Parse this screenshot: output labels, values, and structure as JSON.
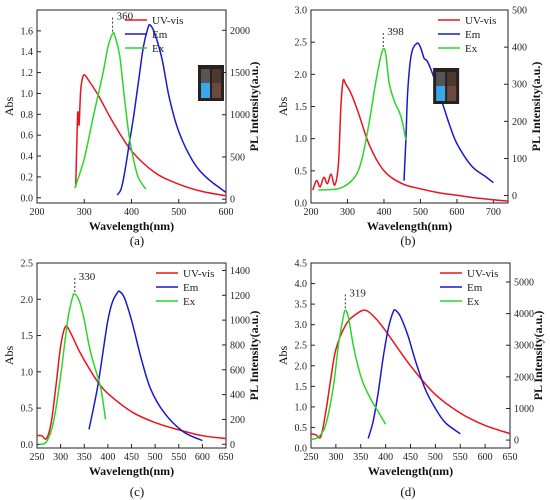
{
  "colors": {
    "uvvis": "#e8141b",
    "em": "#1a1acc",
    "ex": "#2bd62b"
  },
  "chart_data": [
    {
      "type": "line",
      "caption": "(a)",
      "xlabel": "Wavelength(nm)",
      "ylabel": "Abs",
      "ylabel_right": "PL Intensity(a.u.)",
      "xlim": [
        200,
        600
      ],
      "ylim": [
        -0.05,
        1.8
      ],
      "ylim_right": [
        -45,
        2240
      ],
      "xticks": [
        200,
        300,
        400,
        500,
        600
      ],
      "yticks": [
        0.0,
        0.2,
        0.4,
        0.6,
        0.8,
        1.0,
        1.2,
        1.4,
        1.6
      ],
      "yticks_right": [
        0,
        500,
        1000,
        1500,
        2000
      ],
      "annotation": {
        "text": "360",
        "x": 360
      },
      "legend_position": "top-center",
      "has_inset_photo": true,
      "series": [
        {
          "name": "UV-vis",
          "color_key": "uvvis",
          "axis": "left",
          "x": [
            282,
            286,
            289,
            292,
            295,
            300,
            310,
            330,
            360,
            400,
            450,
            500,
            550,
            600
          ],
          "y": [
            0.1,
            0.8,
            0.7,
            1.0,
            1.12,
            1.18,
            1.12,
            0.98,
            0.73,
            0.45,
            0.24,
            0.13,
            0.06,
            0.02
          ]
        },
        {
          "name": "Em",
          "color_key": "em",
          "axis": "right",
          "x": [
            370,
            378,
            385,
            395,
            405,
            415,
            425,
            435,
            440,
            450,
            465,
            480,
            500,
            530,
            560,
            600
          ],
          "y": [
            50,
            120,
            300,
            650,
            1000,
            1400,
            1800,
            2030,
            2060,
            1950,
            1650,
            1200,
            800,
            450,
            250,
            80
          ]
        },
        {
          "name": "Ex",
          "color_key": "ex",
          "axis": "right",
          "x": [
            280,
            300,
            320,
            340,
            350,
            360,
            365,
            375,
            385,
            395,
            405,
            415,
            430
          ],
          "y": [
            130,
            480,
            1000,
            1500,
            1800,
            1960,
            1930,
            1700,
            1200,
            750,
            450,
            250,
            120
          ]
        }
      ]
    },
    {
      "type": "line",
      "caption": "(b)",
      "xlabel": "Wavelength(nm)",
      "ylabel": "Abs",
      "ylabel_right": "PL Intensity(a.u.)",
      "xlim": [
        200,
        740
      ],
      "ylim": [
        0.0,
        3.0
      ],
      "ylim_right": [
        -20,
        500
      ],
      "xticks": [
        200,
        300,
        400,
        500,
        600,
        700
      ],
      "yticks": [
        0.0,
        0.5,
        1.0,
        1.5,
        2.0,
        2.5,
        3.0
      ],
      "yticks_right": [
        0,
        100,
        200,
        300,
        400,
        500
      ],
      "annotation": {
        "text": "398",
        "x": 398
      },
      "legend_position": "top-right",
      "has_inset_photo": true,
      "series": [
        {
          "name": "UV-vis",
          "color_key": "uvvis",
          "axis": "left",
          "x": [
            205,
            215,
            225,
            235,
            245,
            255,
            265,
            275,
            282,
            288,
            295,
            310,
            330,
            360,
            400,
            450,
            500,
            550,
            600,
            650,
            700,
            740
          ],
          "y": [
            0.2,
            0.35,
            0.25,
            0.4,
            0.3,
            0.45,
            0.28,
            0.6,
            1.5,
            1.9,
            1.85,
            1.7,
            1.4,
            0.9,
            0.5,
            0.3,
            0.22,
            0.16,
            0.12,
            0.08,
            0.05,
            0.03
          ]
        },
        {
          "name": "Em",
          "color_key": "em",
          "axis": "right",
          "x": [
            455,
            460,
            465,
            475,
            490,
            500,
            510,
            520,
            540,
            560,
            580,
            600,
            640,
            680,
            700
          ],
          "y": [
            40,
            150,
            280,
            380,
            410,
            400,
            370,
            360,
            310,
            250,
            190,
            140,
            80,
            50,
            35
          ]
        },
        {
          "name": "Ex",
          "color_key": "ex",
          "axis": "right",
          "x": [
            220,
            280,
            320,
            340,
            360,
            375,
            388,
            398,
            405,
            415,
            430,
            440,
            450,
            460
          ],
          "y": [
            15,
            20,
            50,
            100,
            200,
            290,
            360,
            395,
            380,
            300,
            250,
            230,
            200,
            150
          ]
        }
      ]
    },
    {
      "type": "line",
      "caption": "(c)",
      "xlabel": "Wavelength(nm)",
      "ylabel": "Abs",
      "ylabel_right": "PL Intensity(a.u.)",
      "xlim": [
        250,
        650
      ],
      "ylim": [
        -0.05,
        2.5
      ],
      "ylim_right": [
        -30,
        1460
      ],
      "xticks": [
        250,
        300,
        350,
        400,
        450,
        500,
        550,
        600,
        650
      ],
      "yticks": [
        0.0,
        0.5,
        1.0,
        1.5,
        2.0,
        2.5
      ],
      "yticks_right": [
        0,
        200,
        400,
        600,
        800,
        1000,
        1200,
        1400
      ],
      "annotation": {
        "text": "330",
        "x": 330
      },
      "legend_position": "top-right",
      "has_inset_photo": false,
      "series": [
        {
          "name": "UV-vis",
          "color_key": "uvvis",
          "axis": "left",
          "x": [
            250,
            260,
            270,
            280,
            290,
            300,
            310,
            320,
            340,
            360,
            380,
            400,
            450,
            500,
            550,
            600,
            650
          ],
          "y": [
            0.12,
            0.12,
            0.08,
            0.3,
            0.8,
            1.35,
            1.62,
            1.55,
            1.28,
            1.05,
            0.85,
            0.7,
            0.45,
            0.3,
            0.2,
            0.12,
            0.08
          ]
        },
        {
          "name": "Em",
          "color_key": "em",
          "axis": "right",
          "x": [
            360,
            370,
            380,
            390,
            400,
            410,
            420,
            425,
            435,
            450,
            470,
            490,
            520,
            560,
            600
          ],
          "y": [
            120,
            300,
            500,
            750,
            1000,
            1150,
            1220,
            1230,
            1180,
            1000,
            700,
            450,
            250,
            100,
            30
          ]
        },
        {
          "name": "Ex",
          "color_key": "ex",
          "axis": "right",
          "x": [
            255,
            270,
            285,
            300,
            315,
            325,
            330,
            340,
            350,
            360,
            370,
            385,
            395
          ],
          "y": [
            0,
            20,
            180,
            550,
            1000,
            1180,
            1210,
            1150,
            1000,
            800,
            650,
            450,
            200
          ]
        }
      ]
    },
    {
      "type": "line",
      "caption": "(d)",
      "xlabel": "Wavelength(nm)",
      "ylabel": "Abs",
      "ylabel_right": "PL Intensity(a.u.)",
      "xlim": [
        250,
        650
      ],
      "ylim": [
        0.0,
        4.5
      ],
      "ylim_right": [
        -250,
        5600
      ],
      "xticks": [
        250,
        300,
        350,
        400,
        450,
        500,
        550,
        600,
        650
      ],
      "yticks": [
        0.0,
        0.5,
        1.0,
        1.5,
        2.0,
        2.5,
        3.0,
        3.5,
        4.0,
        4.5
      ],
      "yticks_right": [
        0,
        1000,
        2000,
        3000,
        4000,
        5000
      ],
      "annotation": {
        "text": "319",
        "x": 319
      },
      "legend_position": "top-right",
      "has_inset_photo": false,
      "series": [
        {
          "name": "UV-vis",
          "color_key": "uvvis",
          "axis": "left",
          "x": [
            250,
            260,
            270,
            280,
            290,
            300,
            320,
            340,
            360,
            380,
            400,
            450,
            500,
            550,
            600,
            650
          ],
          "y": [
            0.35,
            0.32,
            0.28,
            0.9,
            1.7,
            2.4,
            3.0,
            3.25,
            3.35,
            3.15,
            2.85,
            2.0,
            1.3,
            0.85,
            0.55,
            0.35
          ]
        },
        {
          "name": "Em",
          "color_key": "em",
          "axis": "right",
          "x": [
            365,
            375,
            385,
            395,
            405,
            415,
            420,
            430,
            445,
            460,
            480,
            500,
            520,
            550
          ],
          "y": [
            50,
            600,
            1500,
            2600,
            3500,
            4050,
            4100,
            3900,
            3300,
            2500,
            1600,
            1000,
            550,
            200
          ]
        },
        {
          "name": "Ex",
          "color_key": "ex",
          "axis": "right",
          "x": [
            250,
            265,
            280,
            295,
            305,
            315,
            319,
            325,
            335,
            345,
            355,
            370,
            385,
            400
          ],
          "y": [
            20,
            100,
            500,
            1700,
            3000,
            3900,
            4100,
            3900,
            3000,
            2300,
            1800,
            1300,
            900,
            500
          ]
        }
      ]
    }
  ]
}
